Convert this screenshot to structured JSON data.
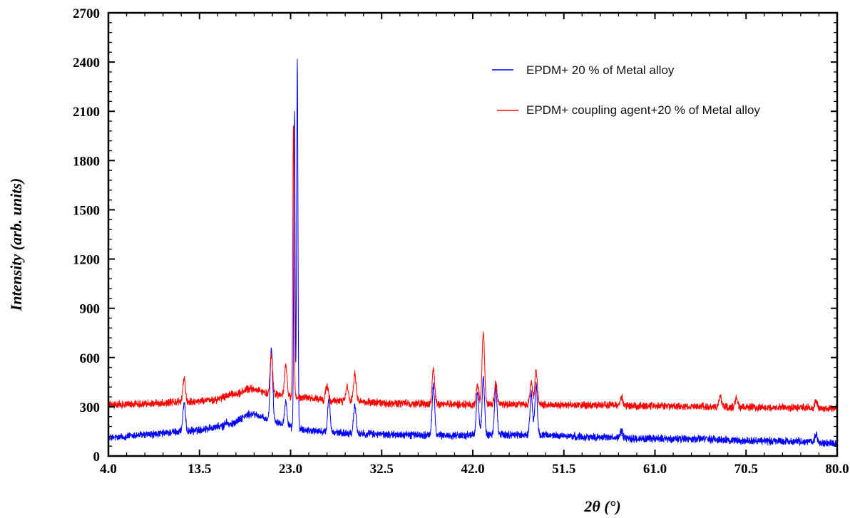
{
  "chart_data": {
    "type": "line",
    "title": "",
    "xlabel": "2θ (°)",
    "ylabel": "Intensity (arb. units)",
    "xlim": [
      4.0,
      80.0
    ],
    "ylim": [
      0,
      2700
    ],
    "x_ticks": [
      "4.0",
      "13.5",
      "23.0",
      "32.5",
      "42.0",
      "51.5",
      "61.0",
      "70.5",
      "80.0"
    ],
    "y_ticks": [
      "0",
      "300",
      "600",
      "900",
      "1200",
      "1500",
      "1800",
      "2100",
      "2400",
      "2700"
    ],
    "legend_position": "top-right",
    "grid": false,
    "series": [
      {
        "name": "EPDM+ 20 % of Metal alloy",
        "color": "#0000ff",
        "baseline": [
          [
            4,
            110
          ],
          [
            8,
            130
          ],
          [
            12,
            150
          ],
          [
            16,
            180
          ],
          [
            19,
            255
          ],
          [
            21,
            215
          ],
          [
            24,
            160
          ],
          [
            28,
            140
          ],
          [
            34,
            130
          ],
          [
            40,
            125
          ],
          [
            46,
            130
          ],
          [
            50,
            125
          ],
          [
            55,
            115
          ],
          [
            60,
            105
          ],
          [
            65,
            105
          ],
          [
            70,
            95
          ],
          [
            75,
            90
          ],
          [
            80,
            75
          ]
        ],
        "peaks": [
          [
            11.9,
            320
          ],
          [
            16.3,
            210
          ],
          [
            21.0,
            660
          ],
          [
            22.5,
            330
          ],
          [
            23.4,
            2100
          ],
          [
            23.7,
            2420
          ],
          [
            27.0,
            350
          ],
          [
            29.7,
            310
          ],
          [
            37.9,
            430
          ],
          [
            42.5,
            390
          ],
          [
            43.1,
            470
          ],
          [
            44.4,
            420
          ],
          [
            48.1,
            380
          ],
          [
            48.6,
            430
          ],
          [
            57.5,
            150
          ],
          [
            77.8,
            130
          ]
        ]
      },
      {
        "name": "EPDM+ coupling agent+20 % of Metal alloy",
        "color": "#ff0000",
        "baseline": [
          [
            4,
            310
          ],
          [
            8,
            320
          ],
          [
            12,
            330
          ],
          [
            15,
            340
          ],
          [
            17,
            375
          ],
          [
            19,
            410
          ],
          [
            21,
            375
          ],
          [
            24,
            355
          ],
          [
            28,
            335
          ],
          [
            34,
            320
          ],
          [
            40,
            315
          ],
          [
            46,
            315
          ],
          [
            50,
            312
          ],
          [
            55,
            310
          ],
          [
            60,
            305
          ],
          [
            65,
            300
          ],
          [
            70,
            298
          ],
          [
            75,
            295
          ],
          [
            80,
            290
          ]
        ],
        "peaks": [
          [
            11.9,
            470
          ],
          [
            21.0,
            620
          ],
          [
            22.5,
            550
          ],
          [
            23.3,
            2020
          ],
          [
            26.8,
            430
          ],
          [
            28.9,
            420
          ],
          [
            29.7,
            500
          ],
          [
            37.9,
            535
          ],
          [
            42.5,
            430
          ],
          [
            43.1,
            750
          ],
          [
            44.4,
            440
          ],
          [
            48.1,
            450
          ],
          [
            48.6,
            520
          ],
          [
            57.5,
            360
          ],
          [
            67.8,
            360
          ],
          [
            69.5,
            350
          ],
          [
            77.8,
            340
          ]
        ]
      }
    ]
  }
}
